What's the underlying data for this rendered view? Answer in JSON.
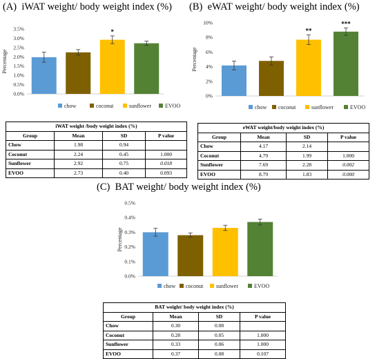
{
  "chart_data": [
    {
      "type": "bar",
      "panel": "(A)",
      "title": "iWAT weight/ body weight index (%)",
      "ylabel": "Percentage",
      "categories": [
        "chow",
        "coconut",
        "sunflower",
        "EVOO"
      ],
      "values": [
        1.98,
        2.24,
        2.92,
        2.73
      ],
      "errors": [
        0.27,
        0.15,
        0.21,
        0.12
      ],
      "significance": [
        "",
        "",
        "*",
        ""
      ],
      "ylim": [
        0,
        3.5
      ],
      "yticks": [
        "0.0%",
        "0.5%",
        "1.0%",
        "1.5%",
        "2.0%",
        "2.5%",
        "3.0%",
        "3.5%"
      ],
      "legend": "bottom"
    },
    {
      "type": "bar",
      "panel": "(B)",
      "title": "eWAT weight/ body weight index (%)",
      "ylabel": "Percentage",
      "categories": [
        "chow",
        "coconut",
        "sunflower",
        "EVOO"
      ],
      "values": [
        4.17,
        4.79,
        7.69,
        8.79
      ],
      "errors": [
        0.6,
        0.55,
        0.65,
        0.5
      ],
      "significance": [
        "",
        "",
        "**",
        "***"
      ],
      "ylim": [
        0,
        10
      ],
      "yticks": [
        "0%",
        "2%",
        "4%",
        "6%",
        "8%",
        "10%"
      ],
      "legend": "bottom"
    },
    {
      "type": "bar",
      "panel": "(C)",
      "title": "BAT weight/ body weight index (%)",
      "ylabel": "Percentage",
      "categories": [
        "chow",
        "coconut",
        "sunflower",
        "EVOO"
      ],
      "values": [
        0.3,
        0.28,
        0.33,
        0.37
      ],
      "errors": [
        0.027,
        0.015,
        0.018,
        0.02
      ],
      "significance": [
        "",
        "",
        "",
        ""
      ],
      "ylim": [
        0,
        0.5
      ],
      "yticks": [
        "0.0%",
        "0.1%",
        "0.2%",
        "0.3%",
        "0.4%",
        "0.5%"
      ],
      "legend": "bottom"
    }
  ],
  "colors": {
    "chow": "#5b9bd5",
    "coconut": "#7f6000",
    "sunflower": "#ffc000",
    "EVOO": "#548235"
  },
  "tables": [
    {
      "title": "iWAT weight /body weight index (%)",
      "headers": [
        "Group",
        "Mean",
        "SD",
        "P value"
      ],
      "rows": [
        [
          "Chow",
          "1.98",
          "0.94",
          ""
        ],
        [
          "Coconut",
          "2.24",
          "0.45",
          "1.000"
        ],
        [
          "Sunflower",
          "2.92",
          "0.75",
          "0.018"
        ],
        [
          "EVOO",
          "2.73",
          "0.40",
          "0.093"
        ]
      ]
    },
    {
      "title": "eWAT weight/body weight index (%)",
      "headers": [
        "Group",
        "Mean",
        "SD",
        "P value"
      ],
      "rows": [
        [
          "Chow",
          "4.17",
          "2.14",
          ""
        ],
        [
          "Coconut",
          "4.79",
          "1.99",
          "1.000"
        ],
        [
          "Sunflower",
          "7.69",
          "2.28",
          "0.002"
        ],
        [
          "EVOO",
          "8.79",
          "1.83",
          "0.000"
        ]
      ]
    },
    {
      "title": "BAT weight/ body weight index (%)",
      "headers": [
        "Group",
        "Mean",
        "SD",
        "P value"
      ],
      "rows": [
        [
          "Chow",
          "0.30",
          "0.08",
          ""
        ],
        [
          "Coconut",
          "0.28",
          "0.05",
          "1.000"
        ],
        [
          "Sunflower",
          "0.33",
          "0.06",
          "1.000"
        ],
        [
          "EVOO",
          "0.37",
          "0.08",
          "0.107"
        ]
      ]
    }
  ]
}
